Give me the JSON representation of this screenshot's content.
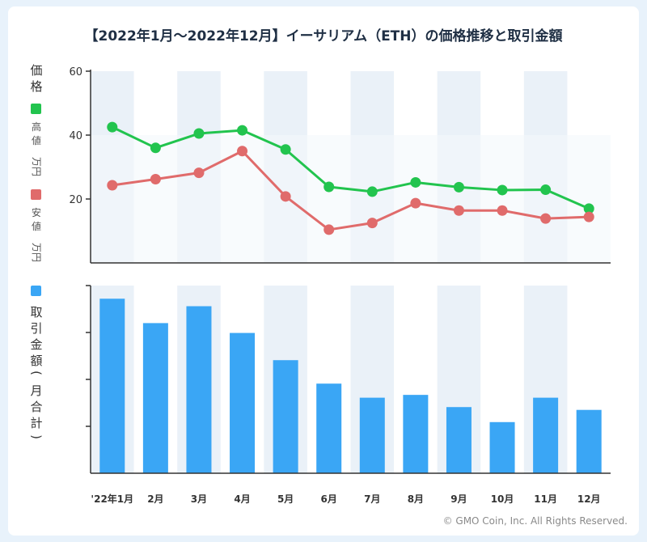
{
  "title": "【2022年1月〜2022年12月】イーサリアム（ETH）の価格推移と取引金額",
  "copyright": "© GMO Coin, Inc. All Rights Reserved.",
  "colors": {
    "high": "#22c44e",
    "low": "#e06b6b",
    "volume": "#3aa6f5",
    "band": "#eaf1f8"
  },
  "price_axis": {
    "main_label": [
      "価",
      "格"
    ],
    "high_label": [
      "高",
      "値"
    ],
    "low_label": [
      "安",
      "値"
    ],
    "unit": "万円"
  },
  "volume_axis": {
    "label": [
      "取",
      "引",
      "金",
      "額",
      "(",
      "月",
      "合",
      "計",
      ")"
    ]
  },
  "chart_data": [
    {
      "type": "line",
      "title": "価格推移",
      "categories": [
        "'22年1月",
        "2月",
        "3月",
        "4月",
        "5月",
        "6月",
        "7月",
        "8月",
        "9月",
        "10月",
        "11月",
        "12月"
      ],
      "ylabel": "価格 (万円)",
      "ylim": [
        0,
        60
      ],
      "yticks": [
        "60",
        "40",
        "20"
      ],
      "series": [
        {
          "name": "高値",
          "values": [
            42.5,
            36.0,
            40.5,
            41.5,
            35.5,
            23.8,
            22.3,
            25.2,
            23.7,
            22.8,
            22.9,
            17.0
          ]
        },
        {
          "name": "安値",
          "values": [
            24.3,
            26.2,
            28.2,
            35.0,
            20.8,
            10.4,
            12.5,
            18.7,
            16.4,
            16.4,
            13.9,
            14.4
          ]
        }
      ]
    },
    {
      "type": "bar",
      "title": "取引金額",
      "categories": [
        "'22年1月",
        "2月",
        "3月",
        "4月",
        "5月",
        "6月",
        "7月",
        "8月",
        "9月",
        "10月",
        "11月",
        "12月"
      ],
      "ylabel": "取引金額(月合計)",
      "ylim": [
        0,
        4.0
      ],
      "series": [
        {
          "name": "取引金額",
          "values": [
            3.72,
            3.2,
            3.56,
            2.99,
            2.41,
            1.91,
            1.61,
            1.67,
            1.41,
            1.09,
            1.61,
            1.35
          ]
        }
      ]
    }
  ]
}
